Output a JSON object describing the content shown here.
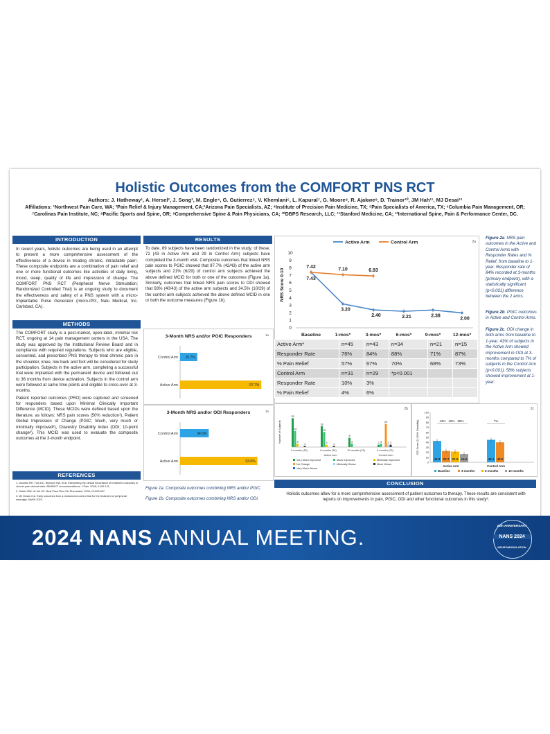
{
  "poster": {
    "title": "Holistic Outcomes from the COMFORT PNS RCT",
    "authors": "Authors: J. Hatheway¹, A. Hersel², J. Song³, M. Engle⁴, G. Gutierrez⁵, V. Khemlani⁶, L. Kapural⁷, G. Moore⁸, R. Ajakwe⁹, D. Trainor¹⁰, JM Hah¹¹, MJ Desai¹²",
    "affiliations": "Affiliations: ¹Northwest Pain Care, WA; ²Pain Relief & Injury Management, CA;³Arizona Pain Specialists, AZ; ⁴Institute of Precision Pain Medicine, TX; ⁵Pain Specialists of America, TX; ⁶Columbia Pain Management, OR; ⁷Carolinas Pain Institute, NC; ⁸Pacific Sports and Spine, OR; ⁹Comprehensive Spine & Pain Physicians, CA; ¹⁰DBPS Research, LLC; ¹¹Stanford Medicine, CA; ¹²International Spine, Pain & Performance Center, DC."
  },
  "introduction": {
    "heading": "INTRODUCTION",
    "text": "In recent years, holistic outcomes are being used in an attempt to present a more comprehensive assessment of the effectiveness of a device in treating chronic, intractable pain¹. These composite endpoints are a combination of pain relief and one or more functional outcomes like activities of daily living, mood, sleep, quality of life and impression of change. The COMFORT PNS RCT (Peripheral Nerve Stimulation; Randomized Controlled Trial) is an ongoing study to document the effectiveness and safety of a PNS system with a micro-Implantable Pulse Generator (micro-IPG, Nalu Medical, Inc. Carlsbad, CA)."
  },
  "methods": {
    "heading": "METHODS",
    "p1": "The COMFORT study is a post-market, open-label, minimal risk RCT, ongoing at 14 pain management centers in the USA. The study was approved by the Institutional Review Board and in compliance with required regulations. Subjects who are eligible, consented, and prescribed PNS therapy to treat chronic pain in the shoulder, knee, low back and foot will be considered for study participation. Subjects in the active arm, completing a successful trial were implanted with the permanent device and followed out to 36 months from device activation. Subjects in the control arm were followed at same time points and eligible to cross-over at 3-months.",
    "p2": "Patient reported outcomes (PRO) were captured and screened for responders based upon Minimal Clinically Important Difference (MCID). These MCIDs were defined based upon the literature, as follows: NRS pain scores (50% reduction¹), Patient Global Impression of Change (PGIC; Much, very much or minimally improved²), Oswestry Disability Index (ODI; 10-point change³). This MCID was used to evaluate the composite outcomes at the 3-month endpoint."
  },
  "references": {
    "heading": "REFERENCES",
    "items": [
      "1. Dworkin RH, Turk DC, Wyrwich KW, et al. Interpreting the clinical importance of treatment outcomes in chronic pain clinical trials: IMMPACT recommendations. J Pain. 2008; 9:105-121.",
      "2. Ostelo RW, de Vet HC. Best Pract Res Clin Rheumatol. 2005; 19:593-607.",
      "3. MJ Desai et al. Early outcomes from a randomized control trial for the treatment of peripheral neuralgia. NANS 2023."
    ]
  },
  "results": {
    "heading": "RESULTS",
    "text": "To date, 89 subjects have been randomized in the study; of these, 72 (43 in Active Arm and 29 in Control Arm) subjects have completed the 3-month visit. Composite outcomes that linked NRS pain scores to PGIC showed that 97.7% (42/43) of the active arm subjects and 21% (6/29) of control arm subjects achieved the above defined MCID for both or one of the outcomes (Figure 1a). Similarly, outcomes that linked NRS pain scores to ODI showed that 93% (40/43) of the active arm subjects and 34.5% (10/29) of the control arm subjects achieved the above defined MCID in one or both the outcome measures (Figure 1b).",
    "caption1a": "Figure 1a. Composite outcomes combining NRS and/or PGIC.",
    "caption1b": "Figure 1b. Composite outcomes combining NRS and/or ODI."
  },
  "fig2a": {
    "caption_label": "Figure 2a",
    "caption_text": ": NRS pain outcomes in the Active and Control Arms with Responder Rates and % Relief, from baseline to 1-year. Responder rate of 84% recorded at 3-months (primary endpoint), with a statistically significant (p<0.001) difference between the 2 arms."
  },
  "fig2b": {
    "caption_label": "Figure 2b",
    "caption_text": ". PGIC outcomes in Active and Control Arms."
  },
  "fig2c": {
    "caption_label": "Figure 2c",
    "caption_text": ". ODI change in both arms from baseline to 1-year. 43% of subjects in the Active Arm showed improvement in ODI at 3-months compared to 7% of subjects in the Control Arm (p<0.001). 58% subjects showed improvement at 1-year."
  },
  "table": {
    "rows": [
      [
        "Active Arm*",
        "n=45",
        "n=43",
        "n=34",
        "n=21",
        "n=15"
      ],
      [
        "Responder Rate",
        "76%",
        "84%",
        "88%",
        "71%",
        "87%"
      ],
      [
        "% Pain Relief",
        "57%",
        "67%",
        "70%",
        "68%",
        "73%"
      ],
      [
        "Control Arm",
        "n=31",
        "n=29",
        "*p<0.001",
        "",
        ""
      ],
      [
        "Responder Rate",
        "10%",
        "3%",
        "",
        "",
        ""
      ],
      [
        "% Pain Relief",
        "4%",
        "6%",
        "",
        "",
        ""
      ]
    ]
  },
  "conclusion": {
    "heading": "CONCLUSION",
    "text": "Holistic outcomes allow for a more comprehensive assessment of patient outcomes to therapy. These results are consistent with reports on improvements in pain, PGIC, ODI and other functional outcomes in this study³."
  },
  "banner": {
    "bold": "2024 NANS",
    "light": " ANNUAL MEETING.",
    "logo_top": "25th ANNIVERSARY",
    "logo_mid": "NANS 2024",
    "logo_bot": "NEUROMODULATION"
  },
  "chart_data": [
    {
      "type": "bar",
      "panel": "1a",
      "title": "3-Month NRS and/or PGIC Responders",
      "categories": [
        "Control Arm",
        "Active Arm"
      ],
      "values": [
        20.7,
        97.7
      ],
      "labels": [
        "20.7%",
        "97.7%"
      ],
      "colors": [
        "#2ea3e6",
        "#f7b800"
      ],
      "orientation": "horizontal",
      "xlim": [
        0,
        100
      ]
    },
    {
      "type": "bar",
      "panel": "1b",
      "title": "3-Month NRS and/or ODI Responders",
      "categories": [
        "Control Arm",
        "Active Arm"
      ],
      "values": [
        34.5,
        93.0
      ],
      "labels": [
        "34.5%",
        "93.0%"
      ],
      "colors": [
        "#2ea3e6",
        "#f7b800"
      ],
      "orientation": "horizontal",
      "xlim": [
        0,
        100
      ]
    },
    {
      "type": "line",
      "panel": "2a",
      "ylabel": "NRS Score 0-10",
      "ylim": [
        0,
        10
      ],
      "categories": [
        "Baseline",
        "1-mos*",
        "3-mos*",
        "6-mos*",
        "9-mos*",
        "12-mos*"
      ],
      "series": [
        {
          "name": "Active Arm",
          "color": "#4a86c8",
          "values": [
            7.43,
            3.2,
            2.4,
            2.21,
            2.38,
            2.0
          ]
        },
        {
          "name": "Control Arm",
          "color": "#e87d2b",
          "values": [
            7.42,
            7.1,
            6.93,
            null,
            null,
            null
          ]
        }
      ],
      "grid": false,
      "legend": "top"
    },
    {
      "type": "bar",
      "panel": "2b",
      "ylabel": "Number of Subjects",
      "groups": [
        "3-months (43)",
        "6-months (34)",
        "12-months (15)",
        "3-months (29)"
      ],
      "group_labels": [
        "Active Arm",
        "Control Arm"
      ],
      "series": [
        {
          "name": "Very Much Improved",
          "color": "#1f9e4a",
          "values": [
            25,
            18,
            8,
            2
          ]
        },
        {
          "name": "Much Improved",
          "color": "#3cc078",
          "values": [
            14,
            13,
            3,
            3
          ]
        },
        {
          "name": "Minimally Improved",
          "color": "#f1c400",
          "values": [
            3,
            2,
            0,
            0
          ]
        },
        {
          "name": "No Change",
          "color": "#f7931e",
          "values": [
            0,
            0,
            0,
            20
          ]
        },
        {
          "name": "Minimally Worse",
          "color": "#9bd2f5",
          "values": [
            0,
            0,
            0,
            2
          ]
        },
        {
          "name": "Much Worse",
          "color": "#333333",
          "values": [
            1,
            1,
            0,
            2
          ]
        },
        {
          "name": "Very Much Worse",
          "color": "#1f6fbf",
          "values": [
            0,
            0,
            0,
            0
          ]
        }
      ],
      "ylim": [
        0,
        30
      ]
    },
    {
      "type": "bar",
      "panel": "2c",
      "ylabel": "ODI Score (0-100% Disability)",
      "ylim": [
        0,
        100
      ],
      "groups": [
        "Active Arm",
        "Control Arm"
      ],
      "series": [
        {
          "name": "Baseline",
          "color": "#2ea3e6",
          "values": [
            42.8,
            45.1
          ]
        },
        {
          "name": "3-months",
          "color": "#f08a24",
          "values": [
            22.7,
            40.0
          ]
        },
        {
          "name": "6-months",
          "color": "#f7b800",
          "values": [
            21.5,
            null
          ]
        },
        {
          "name": "12-months",
          "color": "#9b9b9b",
          "values": [
            16.5,
            null
          ]
        }
      ],
      "annotations": [
        "43%",
        "46%",
        "58%",
        "7%"
      ]
    }
  ]
}
